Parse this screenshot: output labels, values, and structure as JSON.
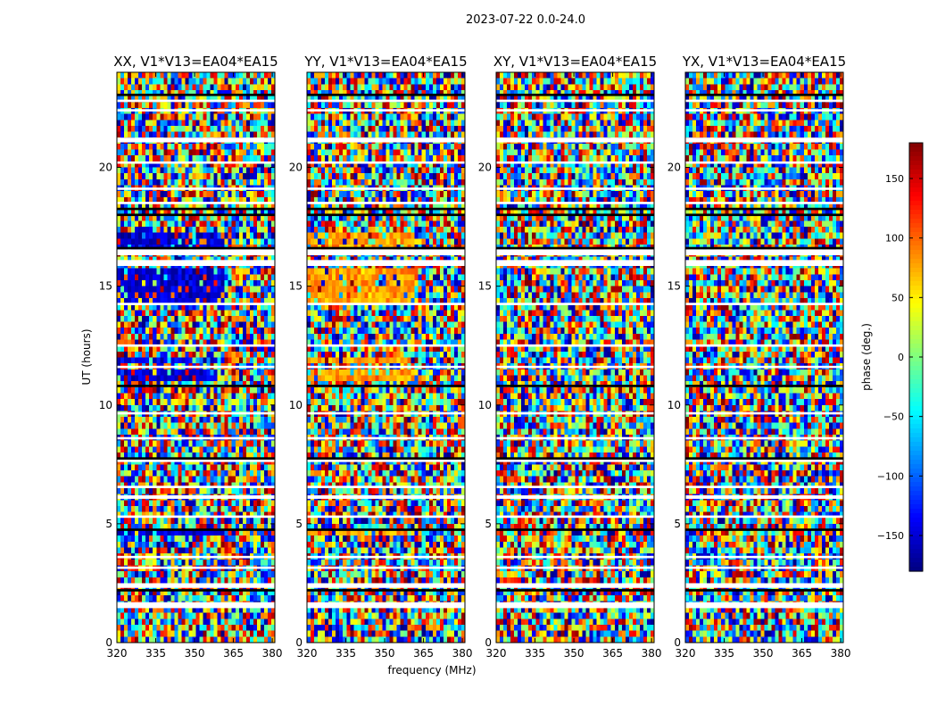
{
  "chart_data": {
    "type": "heatmap",
    "title": "2023-07-22 0.0-24.0",
    "xlabel": "frequency (MHz)",
    "ylabel": "UT (hours)",
    "xlim": [
      320,
      381
    ],
    "ylim": [
      0,
      24
    ],
    "xticks": [
      "320",
      "335",
      "350",
      "365",
      "380"
    ],
    "xtick_values": [
      320,
      335,
      350,
      365,
      380
    ],
    "yticks": [
      "0",
      "5",
      "10",
      "15",
      "20"
    ],
    "ytick_values": [
      0,
      5,
      10,
      15,
      20
    ],
    "panels": [
      {
        "title": "XX, V1*V13=EA04*EA15",
        "structured_phase": -150
      },
      {
        "title": "YY, V1*V13=EA04*EA15",
        "structured_phase": 80
      },
      {
        "title": "XY, V1*V13=EA04*EA15",
        "structured_phase": null
      },
      {
        "title": "YX, V1*V13=EA04*EA15",
        "structured_phase": null
      }
    ],
    "colorbar": {
      "label": "phase (deg.)",
      "range": [
        -180,
        180
      ],
      "ticks": [
        "150",
        "100",
        "50",
        "0",
        "−50",
        "−100",
        "−150"
      ],
      "tick_values": [
        150,
        100,
        50,
        0,
        -50,
        -100,
        -150
      ],
      "colormap": "jet"
    },
    "flagged_gaps_ut": [
      [
        1.45,
        1.7
      ],
      [
        2.3,
        2.5
      ],
      [
        3.1,
        3.2
      ],
      [
        3.55,
        3.65
      ],
      [
        5.25,
        5.35
      ],
      [
        6.05,
        6.2
      ],
      [
        6.5,
        6.6
      ],
      [
        7.6,
        7.7
      ],
      [
        8.55,
        8.65
      ],
      [
        9.6,
        9.7
      ],
      [
        11.55,
        11.65
      ],
      [
        12.45,
        12.55
      ],
      [
        14.2,
        14.3
      ],
      [
        15.85,
        16.1
      ],
      [
        16.3,
        16.55
      ],
      [
        18.45,
        18.55
      ],
      [
        19.05,
        19.15
      ],
      [
        20.15,
        20.25
      ],
      [
        21.05,
        21.25
      ],
      [
        22.35,
        22.45
      ],
      [
        22.75,
        22.85
      ]
    ],
    "black_rows_ut": [
      [
        2.15,
        2.25
      ],
      [
        4.7,
        4.8
      ],
      [
        7.7,
        7.8
      ],
      [
        10.75,
        10.85
      ],
      [
        16.55,
        16.65
      ],
      [
        17.95,
        18.05
      ],
      [
        18.2,
        18.3
      ],
      [
        23.0,
        23.1
      ]
    ],
    "coherent_bands_ut": [
      [
        4.5,
        4.8
      ],
      [
        10.9,
        11.4
      ],
      [
        11.8,
        12.0
      ],
      [
        14.3,
        15.8
      ],
      [
        16.6,
        17.2
      ]
    ]
  }
}
